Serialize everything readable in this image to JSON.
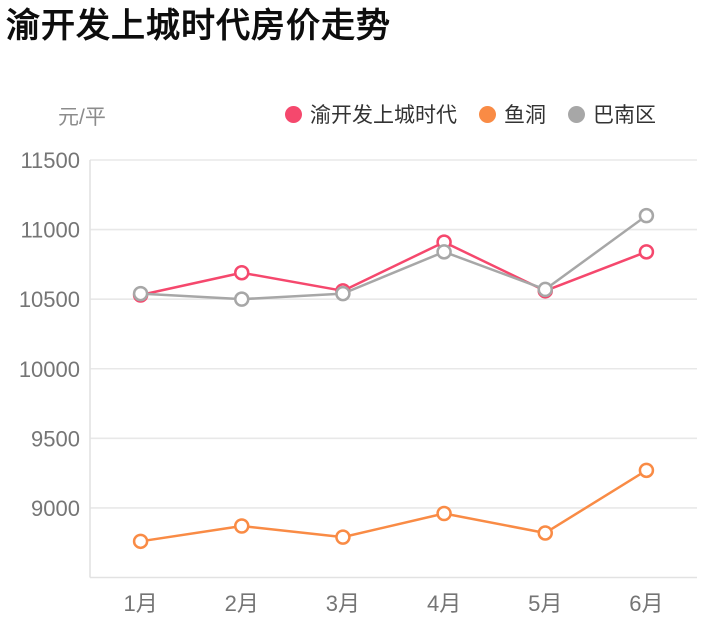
{
  "title": "渝开发上城时代房价走势",
  "chart": {
    "unit_label": "元/平",
    "legend": [
      {
        "label": "渝开发上城时代",
        "color": "#f5486d"
      },
      {
        "label": "鱼洞",
        "color": "#f98b45"
      },
      {
        "label": "巴南区",
        "color": "#a7a7a7"
      }
    ],
    "colors": {
      "grid": "#e8e8e8",
      "axis": "#e2e2e2",
      "tick_text": "#757575"
    }
  },
  "chart_data": {
    "type": "line",
    "title": "渝开发上城时代房价走势",
    "xlabel": "",
    "ylabel": "元/平",
    "categories": [
      "1月",
      "2月",
      "3月",
      "4月",
      "5月",
      "6月"
    ],
    "series": [
      {
        "name": "渝开发上城时代",
        "color": "#f5486d",
        "values": [
          10530,
          10690,
          10560,
          10910,
          10560,
          10840
        ]
      },
      {
        "name": "鱼洞",
        "color": "#f98b45",
        "values": [
          8760,
          8870,
          8790,
          8960,
          8820,
          9270
        ]
      },
      {
        "name": "巴南区",
        "color": "#a7a7a7",
        "values": [
          10540,
          10500,
          10540,
          10840,
          10570,
          11100
        ]
      }
    ],
    "yticks": [
      11500,
      11000,
      10500,
      10000,
      9500,
      9000
    ],
    "ylim": [
      8500,
      11500
    ],
    "grid": true,
    "legend_position": "top",
    "marker": "open-circle"
  }
}
